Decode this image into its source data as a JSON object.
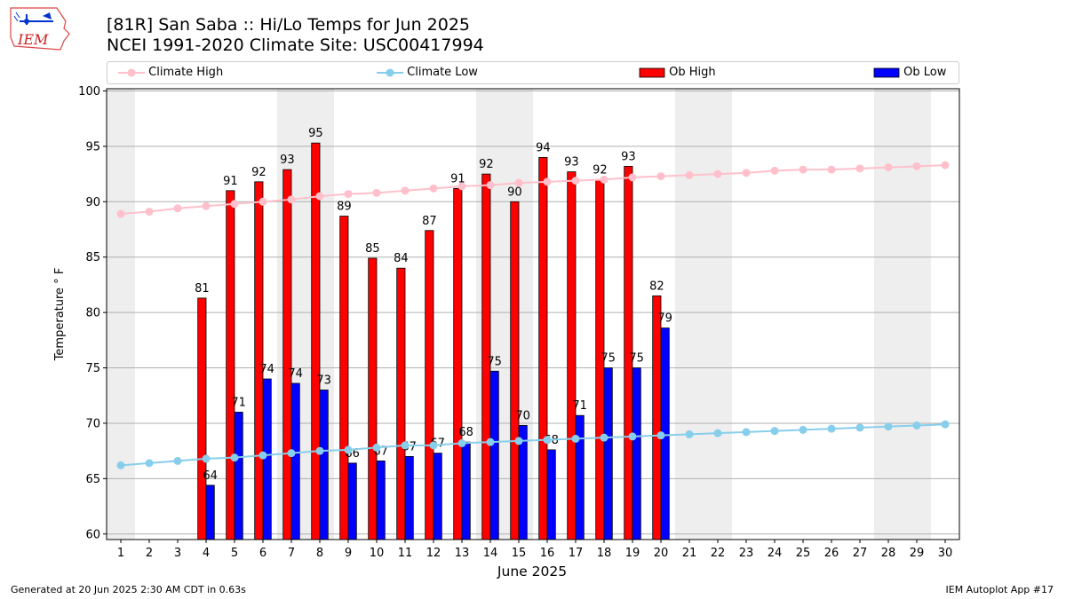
{
  "header": {
    "title_line1": "[81R] San Saba :: Hi/Lo Temps for Jun 2025",
    "title_line2": "NCEI 1991-2020 Climate Site: USC00417994",
    "logo_text": "IEM"
  },
  "footer": {
    "left": "Generated at 20 Jun 2025 2:30 AM CDT in 0.63s",
    "right": "IEM Autoplot App #17"
  },
  "legend": {
    "climate_high": "Climate High",
    "climate_low": "Climate Low",
    "ob_high": "Ob High",
    "ob_low": "Ob Low"
  },
  "colors": {
    "climate_high": "#ffc0cb",
    "climate_low": "#87ceeb",
    "ob_high": "#ff0000",
    "ob_low": "#0000ff",
    "weekend_shade": "#eeeeee",
    "grid": "#b0b0b0"
  },
  "chart_data": {
    "type": "bar",
    "xlabel": "June 2025",
    "ylabel": "Temperature ° F",
    "ylim": [
      59.5,
      100.2
    ],
    "yticks": [
      60,
      65,
      70,
      75,
      80,
      85,
      90,
      95,
      100
    ],
    "grid": "horizontal",
    "legend_placement": "top",
    "days": [
      1,
      2,
      3,
      4,
      5,
      6,
      7,
      8,
      9,
      10,
      11,
      12,
      13,
      14,
      15,
      16,
      17,
      18,
      19,
      20,
      21,
      22,
      23,
      24,
      25,
      26,
      27,
      28,
      29,
      30
    ],
    "shaded_days": [
      1,
      7,
      8,
      14,
      15,
      21,
      22,
      28,
      29
    ],
    "series": [
      {
        "name": "Climate High",
        "kind": "line",
        "values": [
          88.9,
          89.1,
          89.4,
          89.6,
          89.8,
          90.0,
          90.2,
          90.5,
          90.7,
          90.8,
          91.0,
          91.2,
          91.4,
          91.5,
          91.7,
          91.8,
          91.9,
          92.0,
          92.2,
          92.3,
          92.4,
          92.5,
          92.6,
          92.8,
          92.9,
          92.9,
          93.0,
          93.1,
          93.2,
          93.3
        ]
      },
      {
        "name": "Climate Low",
        "kind": "line",
        "values": [
          66.2,
          66.4,
          66.6,
          66.8,
          66.9,
          67.1,
          67.3,
          67.5,
          67.6,
          67.8,
          68.0,
          68.0,
          68.2,
          68.3,
          68.4,
          68.5,
          68.6,
          68.7,
          68.8,
          68.9,
          69.0,
          69.1,
          69.2,
          69.3,
          69.4,
          69.5,
          69.6,
          69.7,
          69.8,
          69.9
        ]
      },
      {
        "name": "Ob High",
        "kind": "bar",
        "offset": "left",
        "values": [
          null,
          null,
          null,
          81.3,
          91.0,
          91.8,
          92.9,
          95.3,
          88.7,
          84.9,
          84.0,
          87.4,
          91.2,
          92.5,
          90.0,
          94.0,
          92.7,
          92.0,
          93.2,
          81.5,
          null,
          null,
          null,
          null,
          null,
          null,
          null,
          null,
          null,
          null
        ],
        "labels": [
          "",
          "",
          "",
          "81",
          "91",
          "92",
          "93",
          "95",
          "89",
          "85",
          "84",
          "87",
          "91",
          "92",
          "90",
          "94",
          "93",
          "92",
          "93",
          "82",
          "",
          "",
          "",
          "",
          "",
          "",
          "",
          "",
          "",
          ""
        ]
      },
      {
        "name": "Ob Low",
        "kind": "bar",
        "offset": "right",
        "values": [
          null,
          null,
          null,
          64.4,
          71.0,
          74.0,
          73.6,
          73.0,
          66.4,
          66.6,
          67.0,
          67.3,
          68.3,
          74.7,
          69.8,
          67.6,
          70.7,
          75.0,
          75.0,
          78.6,
          null,
          null,
          null,
          null,
          null,
          null,
          null,
          null,
          null,
          null
        ],
        "labels": [
          "",
          "",
          "",
          "64",
          "71",
          "74",
          "74",
          "73",
          "66",
          "67",
          "67",
          "67",
          "68",
          "75",
          "70",
          "68",
          "71",
          "75",
          "75",
          "79",
          "",
          "",
          "",
          "",
          "",
          "",
          "",
          "",
          "",
          ""
        ]
      }
    ]
  }
}
